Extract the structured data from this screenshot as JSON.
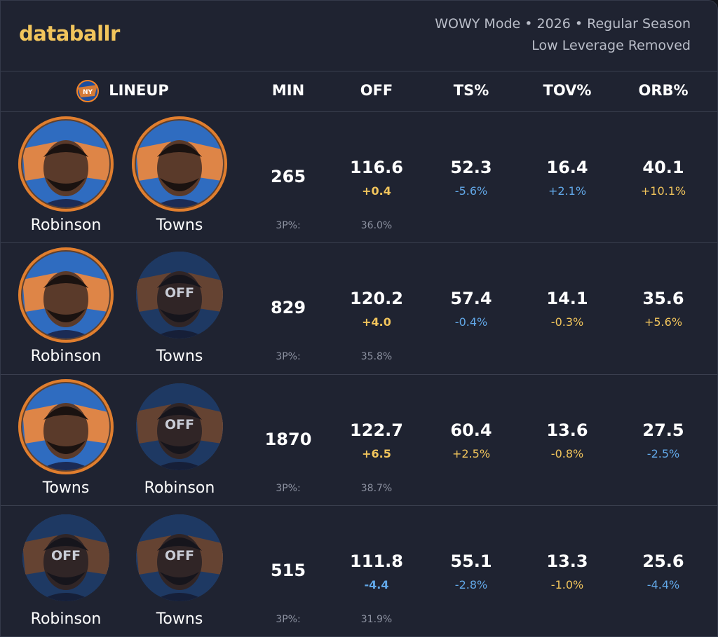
{
  "header": {
    "brand": "databallr",
    "context": "WOWY Mode • 2026 • Regular Season",
    "note": "Low Leverage Removed"
  },
  "table": {
    "columns": [
      "LINEUP",
      "MIN",
      "OFF",
      "TS%",
      "TOV%",
      "ORB%"
    ],
    "rows": [
      {
        "players": [
          {
            "name": "Robinson"
          },
          {
            "name": "Towns"
          }
        ],
        "min": "265",
        "stats": [
          {
            "value": "116.6",
            "delta": "+0.4",
            "color": "#f2c55c"
          },
          {
            "value": "52.3",
            "delta": "-5.6%",
            "color": "#62a8e8"
          },
          {
            "value": "16.4",
            "delta": "+2.1%",
            "color": "#62a8e8"
          },
          {
            "value": "40.1",
            "delta": "+10.1%",
            "color": "#f2c55c"
          }
        ],
        "three_label": "3P%:",
        "three_value": "36.0%"
      },
      {
        "players": [
          {
            "name": "Robinson"
          },
          {
            "name": "Towns",
            "status": "OFF"
          }
        ],
        "min": "829",
        "stats": [
          {
            "value": "120.2",
            "delta": "+4.0",
            "color": "#f2c55c"
          },
          {
            "value": "57.4",
            "delta": "-0.4%",
            "color": "#62a8e8"
          },
          {
            "value": "14.1",
            "delta": "-0.3%",
            "color": "#f2c55c"
          },
          {
            "value": "35.6",
            "delta": "+5.6%",
            "color": "#f2c55c"
          }
        ],
        "three_label": "3P%:",
        "three_value": "35.8%"
      },
      {
        "players": [
          {
            "name": "Towns"
          },
          {
            "name": "Robinson",
            "status": "OFF"
          }
        ],
        "min": "1870",
        "stats": [
          {
            "value": "122.7",
            "delta": "+6.5",
            "color": "#f2c55c"
          },
          {
            "value": "60.4",
            "delta": "+2.5%",
            "color": "#f2c55c"
          },
          {
            "value": "13.6",
            "delta": "-0.8%",
            "color": "#f2c55c"
          },
          {
            "value": "27.5",
            "delta": "-2.5%",
            "color": "#62a8e8"
          }
        ],
        "three_label": "3P%:",
        "three_value": "38.7%"
      },
      {
        "players": [
          {
            "name": "Robinson",
            "status": "OFF"
          },
          {
            "name": "Towns",
            "status": "OFF"
          }
        ],
        "min": "515",
        "stats": [
          {
            "value": "111.8",
            "delta": "-4.4",
            "color": "#62a8e8"
          },
          {
            "value": "55.1",
            "delta": "-2.8%",
            "color": "#62a8e8"
          },
          {
            "value": "13.3",
            "delta": "-1.0%",
            "color": "#f2c55c"
          },
          {
            "value": "25.6",
            "delta": "-4.4%",
            "color": "#62a8e8"
          }
        ],
        "three_label": "3P%:",
        "three_value": "31.9%"
      }
    ]
  }
}
